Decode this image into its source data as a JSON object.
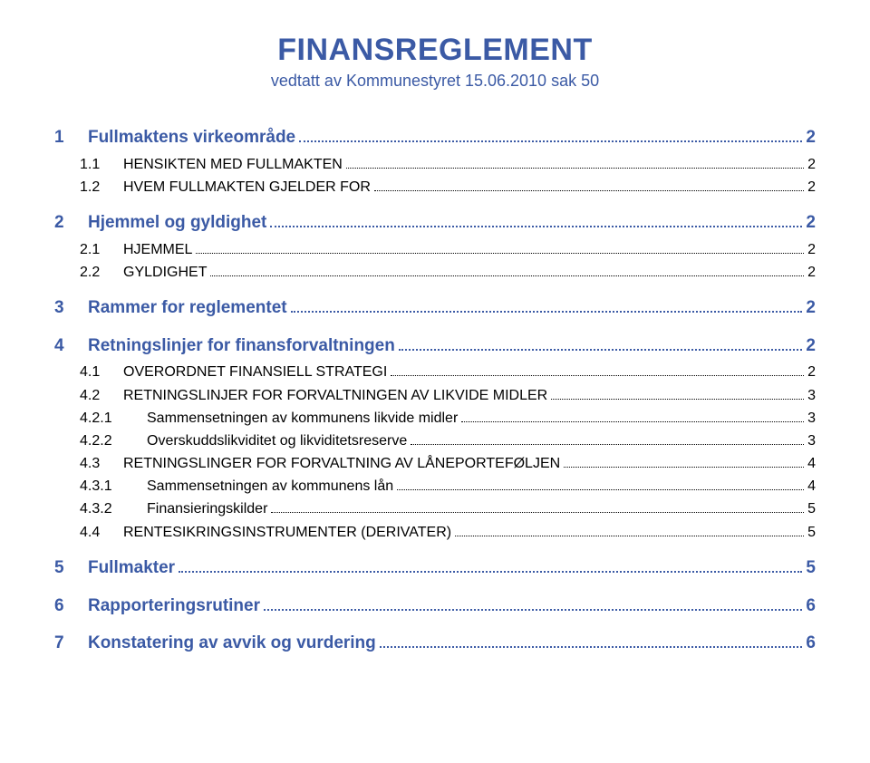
{
  "colors": {
    "accent": "#3b5aa5",
    "text": "#000000",
    "background": "#ffffff"
  },
  "typography": {
    "title_fontsize": 34,
    "subtitle_fontsize": 18,
    "lvl1_fontsize": 19,
    "lvl2_fontsize": 16,
    "font_family": "Arial"
  },
  "title": "FINANSREGLEMENT",
  "subtitle": "vedtatt av Kommunestyret 15.06.2010  sak 50",
  "toc": [
    {
      "level": 1,
      "num": "1",
      "label": "Fullmaktens virkeområde",
      "page": "2"
    },
    {
      "level": 2,
      "num": "1.1",
      "label": "HENSIKTEN MED FULLMAKTEN",
      "page": "2",
      "smallcaps": true
    },
    {
      "level": 2,
      "num": "1.2",
      "label": "HVEM FULLMAKTEN GJELDER FOR",
      "page": "2",
      "smallcaps": true
    },
    {
      "level": 1,
      "num": "2",
      "label": "Hjemmel og gyldighet",
      "page": "2"
    },
    {
      "level": 2,
      "num": "2.1",
      "label": "HJEMMEL",
      "page": "2",
      "smallcaps": true
    },
    {
      "level": 2,
      "num": "2.2",
      "label": "GYLDIGHET",
      "page": "2",
      "smallcaps": true
    },
    {
      "level": 1,
      "num": "3",
      "label": "Rammer for reglementet",
      "page": "2"
    },
    {
      "level": 1,
      "num": "4",
      "label": "Retningslinjer for finansforvaltningen",
      "page": "2"
    },
    {
      "level": 2,
      "num": "4.1",
      "label": "OVERORDNET FINANSIELL STRATEGI",
      "page": "2",
      "smallcaps": true
    },
    {
      "level": 2,
      "num": "4.2",
      "label": "RETNINGSLINJER FOR FORVALTNINGEN AV LIKVIDE MIDLER",
      "page": "3",
      "smallcaps": true
    },
    {
      "level": 3,
      "num": "4.2.1",
      "label": "Sammensetningen av kommunens likvide midler",
      "page": "3"
    },
    {
      "level": 3,
      "num": "4.2.2",
      "label": "Overskuddslikviditet og likviditetsreserve",
      "page": "3"
    },
    {
      "level": 2,
      "num": "4.3",
      "label": "RETNINGSLINGER FOR FORVALTNING AV LÅNEPORTEFØLJEN",
      "page": "4",
      "smallcaps": true
    },
    {
      "level": 3,
      "num": "4.3.1",
      "label": "Sammensetningen av kommunens lån",
      "page": "4"
    },
    {
      "level": 3,
      "num": "4.3.2",
      "label": "Finansieringskilder",
      "page": "5"
    },
    {
      "level": 2,
      "num": "4.4",
      "label": "RENTESIKRINGSINSTRUMENTER (DERIVATER)",
      "page": "5",
      "smallcaps": true
    },
    {
      "level": 1,
      "num": "5",
      "label": "Fullmakter",
      "page": "5"
    },
    {
      "level": 1,
      "num": "6",
      "label": "Rapporteringsrutiner",
      "page": "6"
    },
    {
      "level": 1,
      "num": "7",
      "label": "Konstatering av avvik og vurdering",
      "page": "6"
    }
  ]
}
